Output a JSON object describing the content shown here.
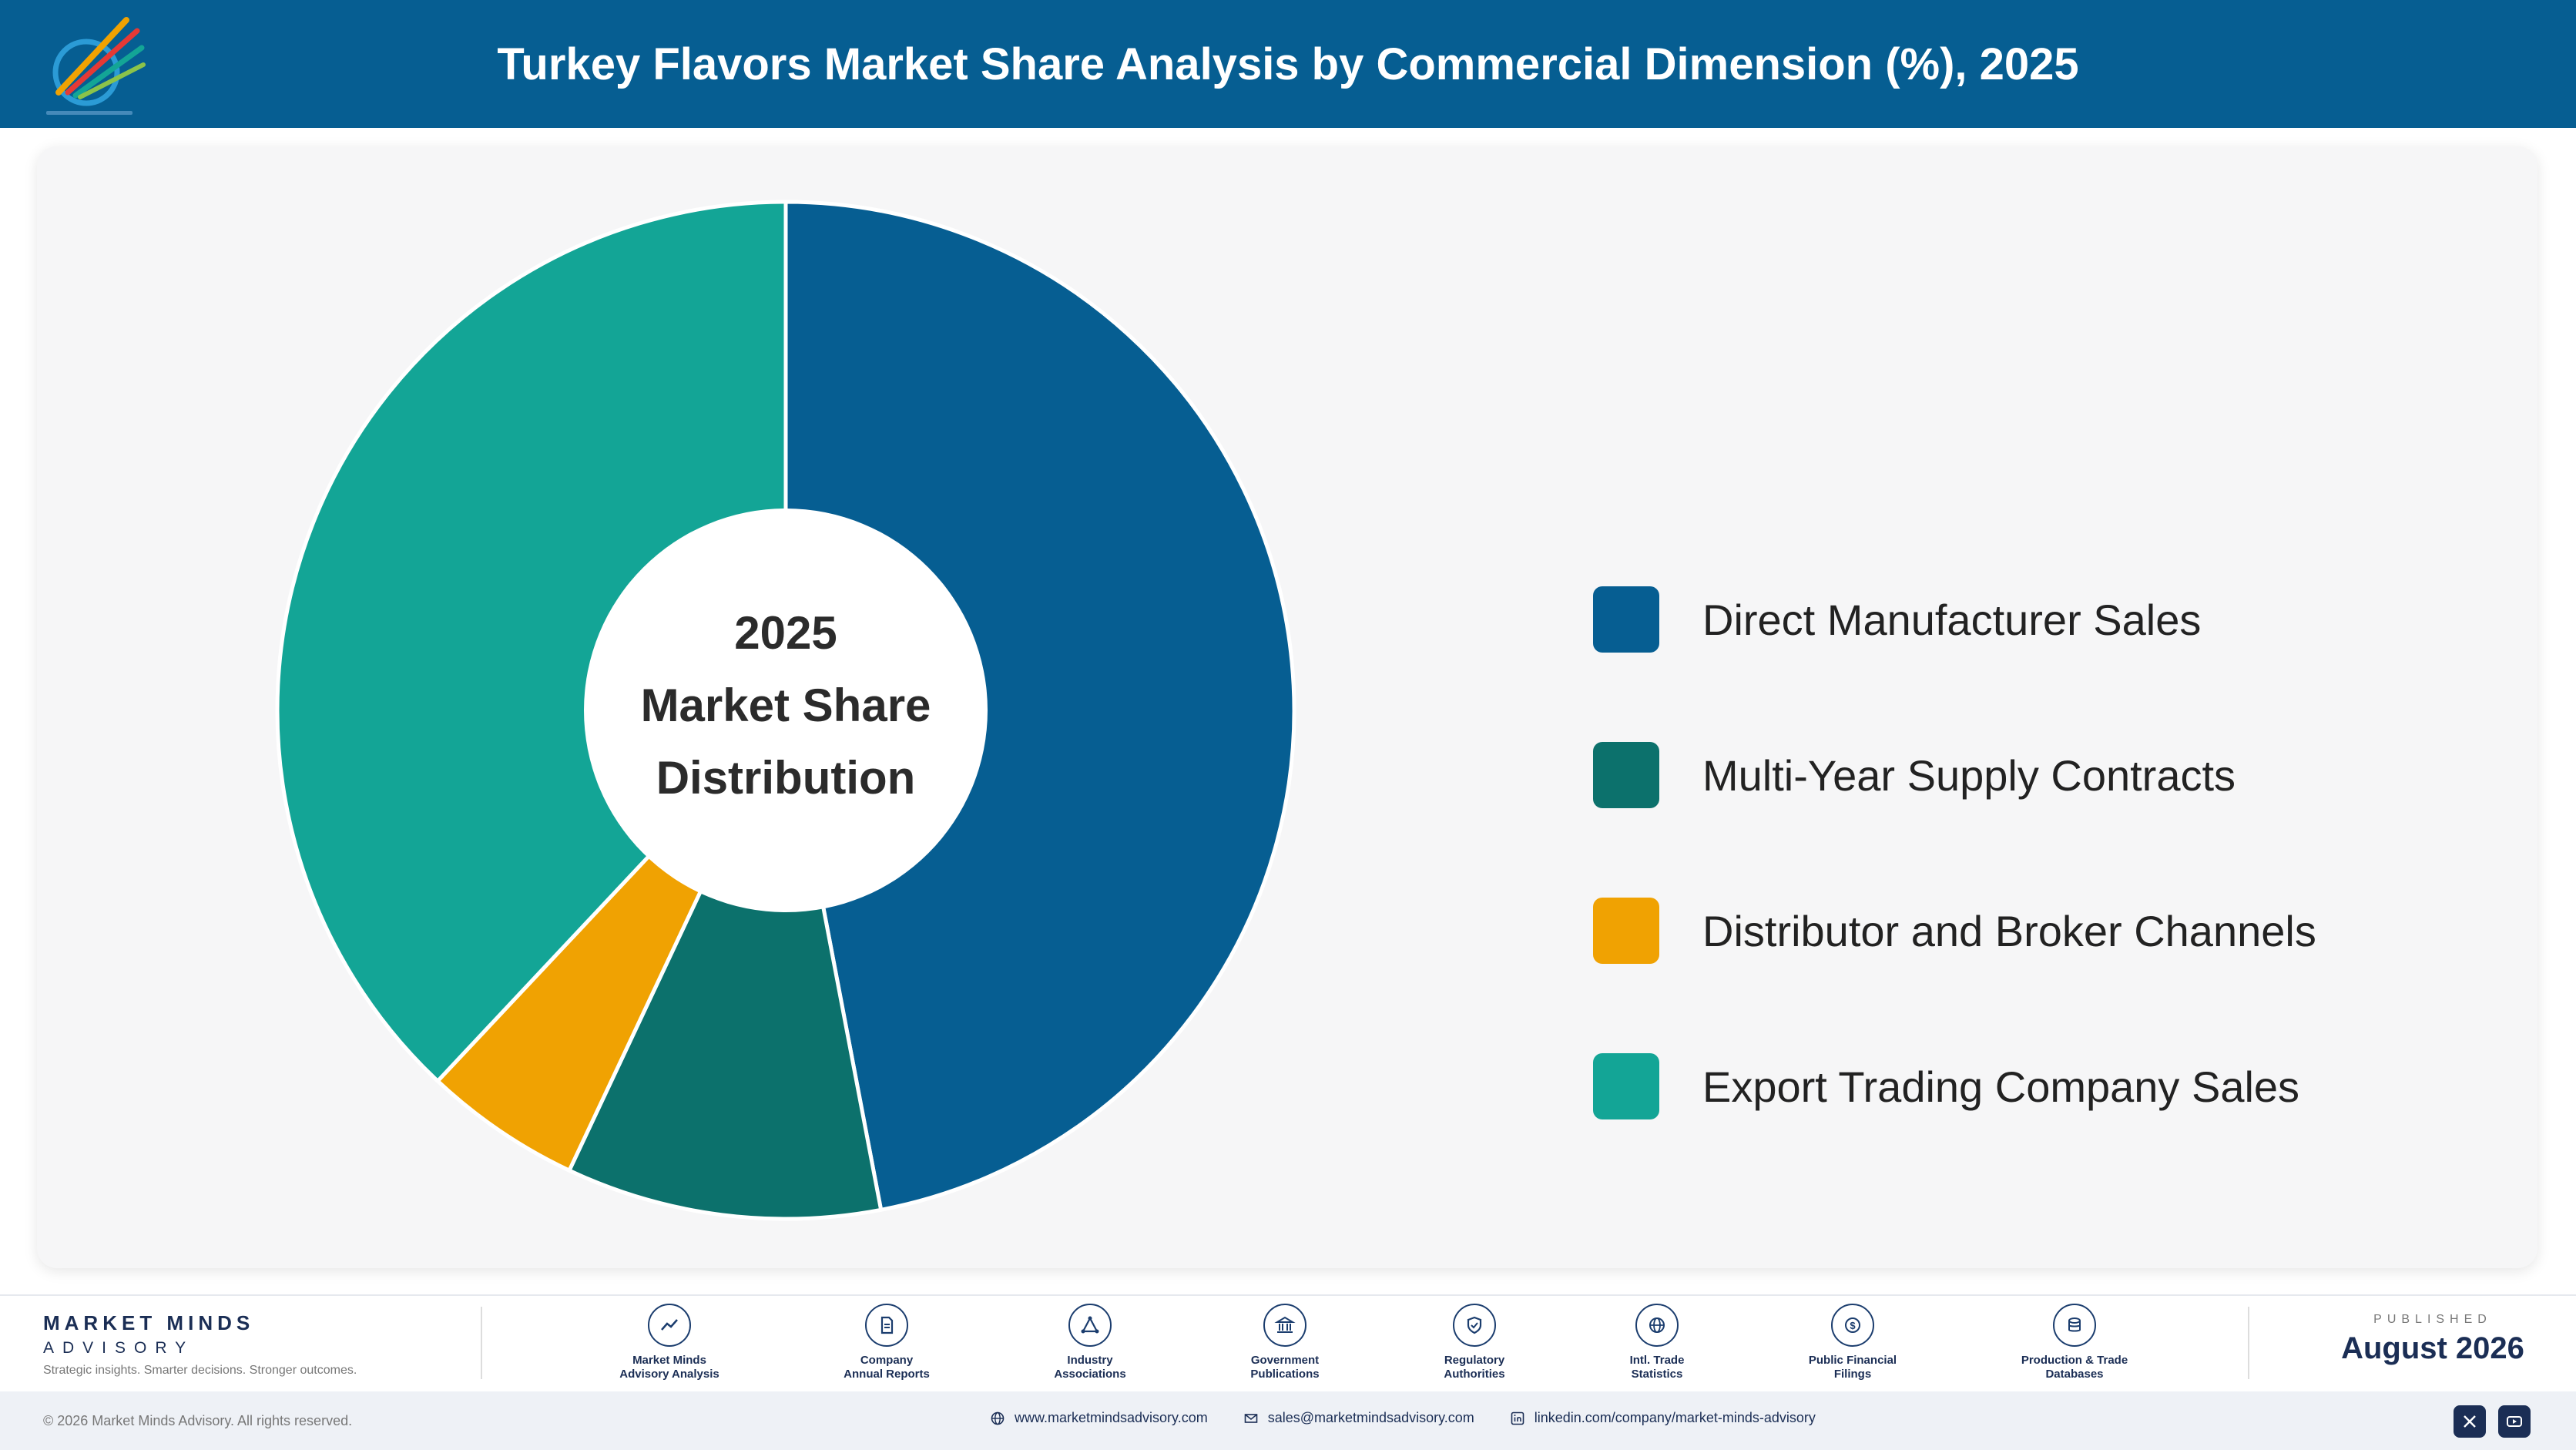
{
  "header": {
    "title": "Turkey Flavors Market Share Analysis by Commercial Dimension (%), 2025"
  },
  "chart_data": {
    "type": "pie",
    "title": "Turkey Flavors Market Share Analysis by Commercial Dimension (%), 2025",
    "center_label": [
      "2025",
      "Market Share",
      "Distribution"
    ],
    "categories": [
      "Direct Manufacturer Sales",
      "Multi-Year Supply Contracts",
      "Distributor and Broker Channels",
      "Export Trading Company Sales"
    ],
    "values": [
      47,
      10,
      5,
      38
    ],
    "colors": [
      "#065e92",
      "#0c716c",
      "#f0a202",
      "#13a596"
    ],
    "legend_position": "right"
  },
  "footer": {
    "brand_name": "MARKET MINDS",
    "brand_sub": "ADVISORY",
    "brand_tagline": "Strategic insights. Smarter decisions. Stronger outcomes.",
    "sources": [
      {
        "label": "Market Minds\nAdvisory Analysis",
        "icon": "chart-line-icon"
      },
      {
        "label": "Company\nAnnual Reports",
        "icon": "document-icon"
      },
      {
        "label": "Industry\nAssociations",
        "icon": "network-icon"
      },
      {
        "label": "Government\nPublications",
        "icon": "government-building-icon"
      },
      {
        "label": "Regulatory\nAuthorities",
        "icon": "shield-icon"
      },
      {
        "label": "Intl. Trade\nStatistics",
        "icon": "globe-icon"
      },
      {
        "label": "Public Financial\nFilings",
        "icon": "dollar-icon"
      },
      {
        "label": "Production & Trade\nDatabases",
        "icon": "database-icon"
      }
    ],
    "published_label": "PUBLISHED",
    "published_date": "August 2026"
  },
  "bottom_bar": {
    "copyright": "© 2026 Market Minds Advisory. All rights reserved.",
    "website": "www.marketmindsadvisory.com",
    "email": "sales@marketmindsadvisory.com",
    "linkedin": "linkedin.com/company/market-minds-advisory"
  }
}
